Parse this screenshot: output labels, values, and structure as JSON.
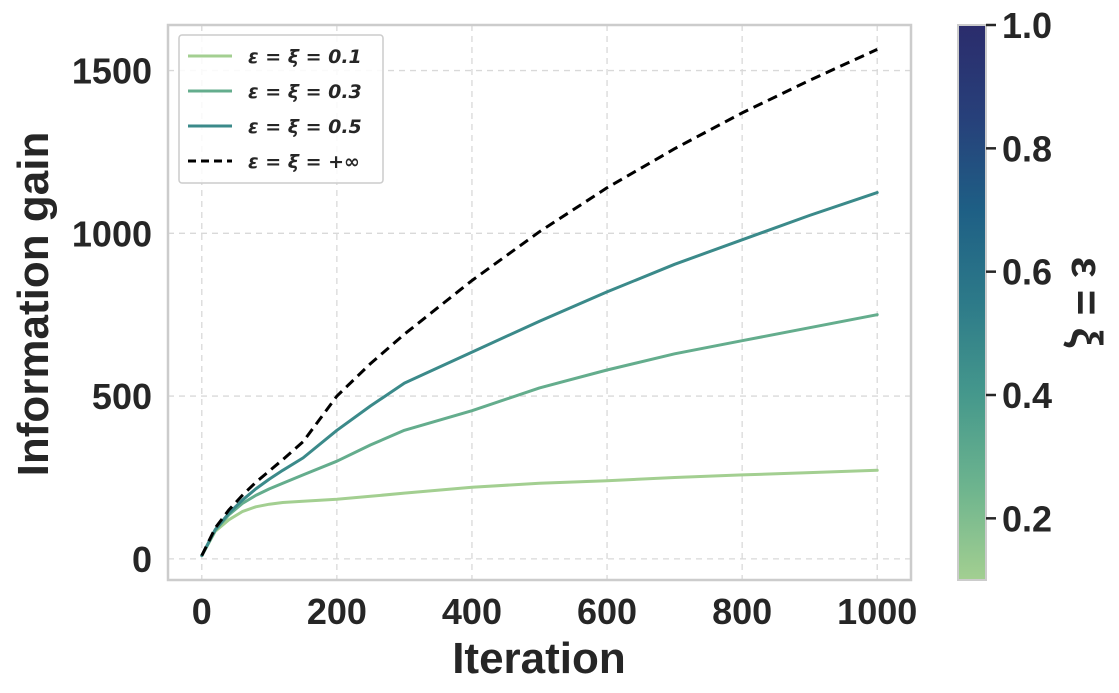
{
  "chart_data": {
    "type": "line",
    "xlabel": "Iteration",
    "ylabel": "Information gain",
    "xlim": [
      -50,
      1050
    ],
    "ylim": [
      -65,
      1640
    ],
    "xticks": [
      "0",
      "200",
      "400",
      "600",
      "800",
      "1000"
    ],
    "xtick_values": [
      0,
      200,
      400,
      600,
      800,
      1000
    ],
    "yticks": [
      "0",
      "500",
      "1000",
      "1500"
    ],
    "ytick_values": [
      0,
      500,
      1000,
      1500
    ],
    "grid": true,
    "legend_position": "top-left",
    "x": [
      0,
      20,
      40,
      60,
      80,
      100,
      120,
      150,
      200,
      250,
      300,
      400,
      500,
      600,
      700,
      800,
      900,
      1000
    ],
    "series": [
      {
        "name": "ε = ξ = 0.1",
        "color": "#a3cf91",
        "dash": "solid",
        "values": [
          10,
          85,
          120,
          145,
          160,
          168,
          173,
          177,
          183,
          192,
          202,
          220,
          232,
          240,
          250,
          258,
          265,
          272
        ]
      },
      {
        "name": "ε = ξ = 0.3",
        "color": "#64ad8d",
        "dash": "solid",
        "values": [
          10,
          88,
          135,
          170,
          195,
          215,
          232,
          258,
          300,
          350,
          395,
          455,
          525,
          580,
          630,
          670,
          710,
          750
        ]
      },
      {
        "name": "ε = ξ = 0.5",
        "color": "#3b8a8a",
        "dash": "solid",
        "values": [
          10,
          90,
          140,
          180,
          215,
          245,
          272,
          310,
          395,
          470,
          540,
          635,
          730,
          820,
          905,
          980,
          1055,
          1125
        ]
      },
      {
        "name": "ε = ξ = +∞",
        "color": "#000000",
        "dash": "dashed",
        "values": [
          10,
          95,
          150,
          195,
          235,
          270,
          305,
          360,
          500,
          600,
          690,
          855,
          1005,
          1140,
          1260,
          1370,
          1470,
          1565
        ]
      }
    ],
    "colorbar": {
      "label": "ε = ξ",
      "range": [
        0.1,
        1.0
      ],
      "ticks": [
        "0.2",
        "0.4",
        "0.6",
        "0.8",
        "1.0"
      ],
      "tick_values": [
        0.2,
        0.4,
        0.6,
        0.8,
        1.0
      ],
      "colormap": [
        "#a3cf91",
        "#6db48e",
        "#45988c",
        "#2d7a89",
        "#1e5f85",
        "#27407a",
        "#2b2c6c"
      ]
    }
  }
}
